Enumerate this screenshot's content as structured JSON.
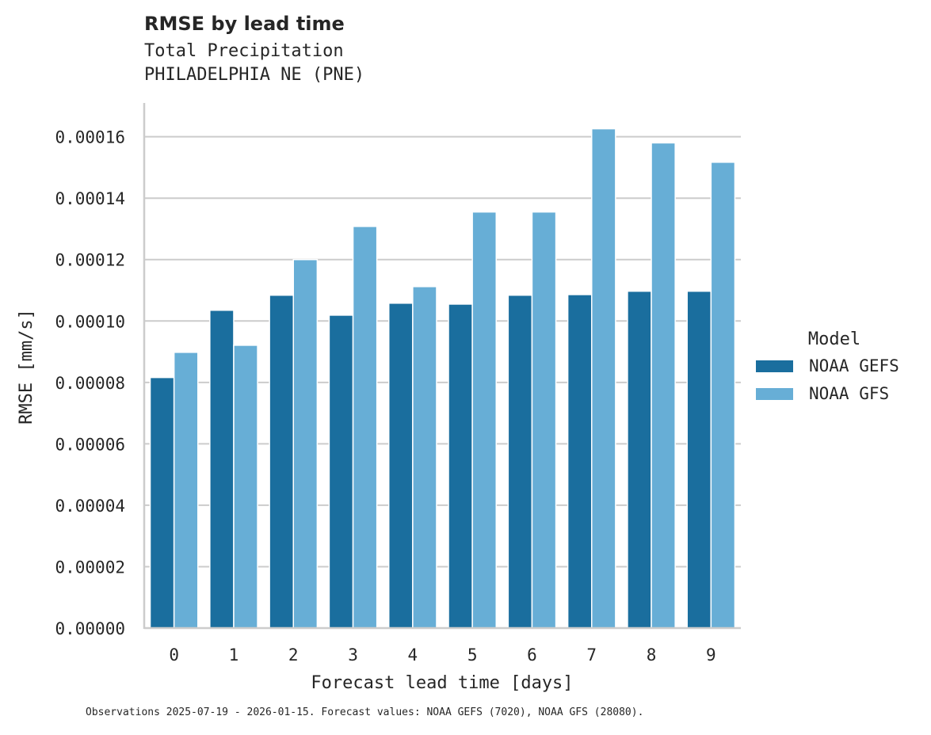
{
  "chart_data": {
    "type": "bar",
    "title": "RMSE by lead time",
    "subtitle": [
      "Total Precipitation",
      "PHILADELPHIA NE (PNE)"
    ],
    "xlabel": "Forecast lead time [days]",
    "ylabel": "RMSE [mm/s]",
    "categories": [
      "0",
      "1",
      "2",
      "3",
      "4",
      "5",
      "6",
      "7",
      "8",
      "9"
    ],
    "series": [
      {
        "name": "NOAA GEFS",
        "color": "#1a6e9e",
        "values": [
          8.16e-05,
          0.0001035,
          0.0001084,
          0.0001019,
          0.0001058,
          0.0001055,
          0.0001084,
          0.0001086,
          0.0001097,
          0.0001097
        ]
      },
      {
        "name": "NOAA GFS",
        "color": "#67aed6",
        "values": [
          8.98e-05,
          9.21e-05,
          0.00012,
          0.0001308,
          0.0001112,
          0.0001355,
          0.0001355,
          0.0001626,
          0.000158,
          0.0001517
        ]
      }
    ],
    "ylim": [
      0,
      0.000171
    ],
    "yticks": [
      "0.00000",
      "0.00002",
      "0.00004",
      "0.00006",
      "0.00008",
      "0.00010",
      "0.00012",
      "0.00014",
      "0.00016"
    ],
    "ytick_values": [
      0,
      2e-05,
      4e-05,
      6e-05,
      8e-05,
      0.0001,
      0.00012,
      0.00014,
      0.00016
    ],
    "grid": "horizontal",
    "legend": {
      "title": "Model",
      "position": "right",
      "entries": [
        "NOAA GEFS",
        "NOAA GFS"
      ]
    }
  },
  "header": {
    "title": "RMSE by lead time",
    "subtitle_1": "Total Precipitation",
    "subtitle_2": "PHILADELPHIA NE (PNE)"
  },
  "footnote": "Observations 2025-07-19 - 2026-01-15. Forecast values: NOAA GEFS (7020), NOAA GFS (28080)."
}
